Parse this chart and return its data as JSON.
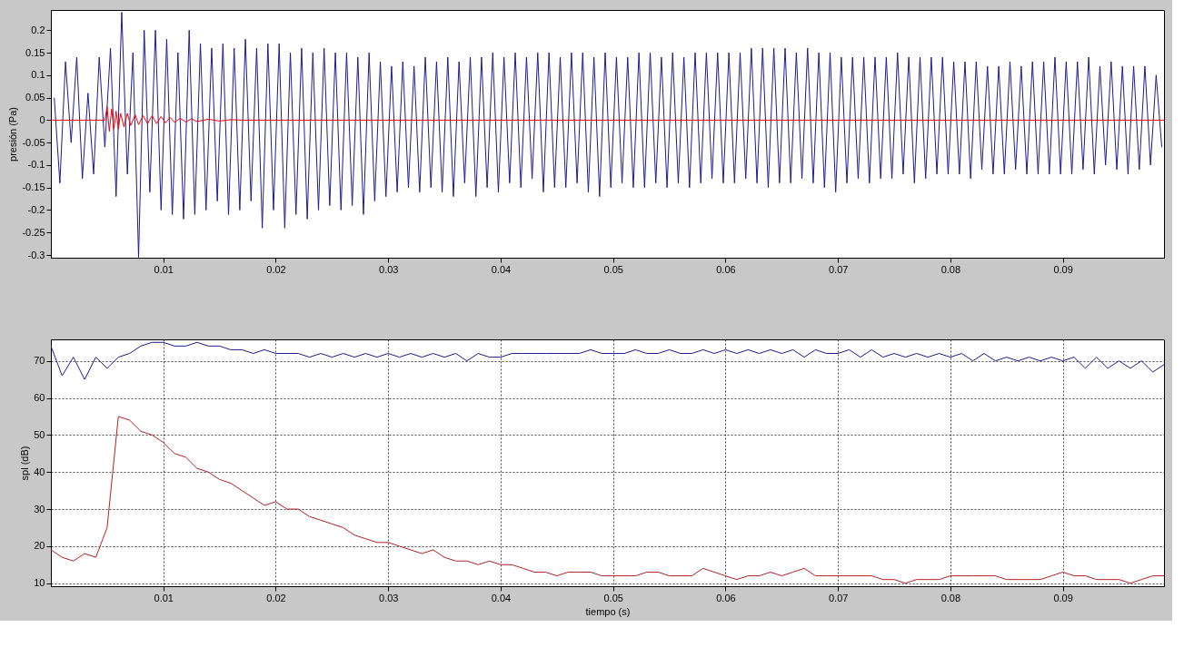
{
  "chart_data": [
    {
      "type": "line",
      "ylabel": "presión (Pa)",
      "xlim": [
        0,
        0.099
      ],
      "ylim": [
        -0.306,
        0.245
      ],
      "xticks": [
        0.01,
        0.02,
        0.03,
        0.04,
        0.05,
        0.06,
        0.07,
        0.08,
        0.09
      ],
      "yticks": [
        -0.3,
        -0.25,
        -0.2,
        -0.15,
        -0.1,
        -0.05,
        0,
        0.05,
        0.1,
        0.15,
        0.2
      ],
      "grid": false,
      "series": [
        {
          "color": "#1c1c8f",
          "x": [
            0.0003,
            0.0008,
            0.0013,
            0.0018,
            0.0023,
            0.0028,
            0.0033,
            0.0038,
            0.0043,
            0.0048,
            0.0053,
            0.0058,
            0.0063,
            0.0068,
            0.0073,
            0.0078,
            0.0083,
            0.0088,
            0.0093,
            0.0098,
            0.0103,
            0.0108,
            0.0113,
            0.0118,
            0.0123,
            0.0128,
            0.0133,
            0.0138,
            0.0143,
            0.0148,
            0.0153,
            0.0158,
            0.0163,
            0.0168,
            0.0173,
            0.0178,
            0.0183,
            0.0188,
            0.0193,
            0.0198,
            0.0203,
            0.0208,
            0.0213,
            0.0218,
            0.0223,
            0.0228,
            0.0233,
            0.0238,
            0.0243,
            0.0248,
            0.0253,
            0.0258,
            0.0263,
            0.0268,
            0.0273,
            0.0278,
            0.0283,
            0.0288,
            0.0293,
            0.0298,
            0.0303,
            0.0308,
            0.0313,
            0.0318,
            0.0323,
            0.0328,
            0.0333,
            0.0338,
            0.0343,
            0.0348,
            0.0353,
            0.0358,
            0.0363,
            0.0368,
            0.0373,
            0.0378,
            0.0383,
            0.0388,
            0.0393,
            0.0398,
            0.0403,
            0.0408,
            0.0413,
            0.0418,
            0.0423,
            0.0428,
            0.0433,
            0.0438,
            0.0443,
            0.0448,
            0.0453,
            0.0458,
            0.0463,
            0.0468,
            0.0473,
            0.0478,
            0.0483,
            0.0488,
            0.0493,
            0.0498,
            0.0503,
            0.0508,
            0.0513,
            0.0518,
            0.0523,
            0.0528,
            0.0533,
            0.0538,
            0.0543,
            0.0548,
            0.0553,
            0.0558,
            0.0563,
            0.0568,
            0.0573,
            0.0578,
            0.0583,
            0.0588,
            0.0593,
            0.0598,
            0.0603,
            0.0608,
            0.0613,
            0.0618,
            0.0623,
            0.0628,
            0.0633,
            0.0638,
            0.0643,
            0.0648,
            0.0653,
            0.0658,
            0.0663,
            0.0668,
            0.0673,
            0.0678,
            0.0683,
            0.0688,
            0.0693,
            0.0698,
            0.0703,
            0.0708,
            0.0713,
            0.0718,
            0.0723,
            0.0728,
            0.0733,
            0.0738,
            0.0743,
            0.0748,
            0.0753,
            0.0758,
            0.0763,
            0.0768,
            0.0773,
            0.0778,
            0.0783,
            0.0788,
            0.0793,
            0.0798,
            0.0803,
            0.0808,
            0.0813,
            0.0818,
            0.0823,
            0.0828,
            0.0833,
            0.0838,
            0.0843,
            0.0848,
            0.0853,
            0.0858,
            0.0863,
            0.0868,
            0.0873,
            0.0878,
            0.0883,
            0.0888,
            0.0893,
            0.0898,
            0.0903,
            0.0908,
            0.0913,
            0.0918,
            0.0923,
            0.0928,
            0.0933,
            0.0938,
            0.0943,
            0.0948,
            0.0953,
            0.0958,
            0.0963,
            0.0968,
            0.0973,
            0.0978,
            0.0983,
            0.0988
          ],
          "values": [
            0.05,
            -0.14,
            0.13,
            -0.05,
            0.14,
            -0.13,
            0.06,
            -0.12,
            0.14,
            -0.06,
            0.16,
            -0.17,
            0.24,
            -0.12,
            0.15,
            -0.305,
            0.2,
            -0.16,
            0.2,
            -0.2,
            0.18,
            -0.21,
            0.15,
            -0.22,
            0.2,
            -0.21,
            0.17,
            -0.2,
            0.16,
            -0.18,
            0.17,
            -0.21,
            0.16,
            -0.2,
            0.18,
            -0.18,
            0.16,
            -0.24,
            0.17,
            -0.2,
            0.17,
            -0.24,
            0.15,
            -0.21,
            0.16,
            -0.22,
            0.15,
            -0.2,
            0.16,
            -0.19,
            0.15,
            -0.2,
            0.15,
            -0.19,
            0.14,
            -0.21,
            0.15,
            -0.18,
            0.13,
            -0.17,
            0.12,
            -0.16,
            0.13,
            -0.15,
            0.12,
            -0.16,
            0.14,
            -0.15,
            0.13,
            -0.16,
            0.14,
            -0.17,
            0.13,
            -0.14,
            0.14,
            -0.17,
            0.14,
            -0.15,
            0.15,
            -0.16,
            0.14,
            -0.14,
            0.15,
            -0.15,
            0.14,
            -0.13,
            0.15,
            -0.16,
            0.15,
            -0.15,
            0.14,
            -0.15,
            0.15,
            -0.14,
            0.15,
            -0.16,
            0.14,
            -0.17,
            0.15,
            -0.15,
            0.14,
            -0.14,
            0.14,
            -0.15,
            0.15,
            -0.15,
            0.15,
            -0.14,
            0.14,
            -0.15,
            0.15,
            -0.14,
            0.14,
            -0.15,
            0.15,
            -0.14,
            0.15,
            -0.13,
            0.15,
            -0.14,
            0.15,
            -0.14,
            0.15,
            -0.13,
            0.16,
            -0.14,
            0.16,
            -0.15,
            0.16,
            -0.14,
            0.16,
            -0.14,
            0.15,
            -0.13,
            0.16,
            -0.14,
            0.15,
            -0.15,
            0.15,
            -0.16,
            0.14,
            -0.14,
            0.14,
            -0.13,
            0.14,
            -0.14,
            0.14,
            -0.13,
            0.14,
            -0.13,
            0.15,
            -0.12,
            0.14,
            -0.14,
            0.14,
            -0.13,
            0.14,
            -0.12,
            0.14,
            -0.12,
            0.13,
            -0.12,
            0.13,
            -0.13,
            0.13,
            -0.11,
            0.12,
            -0.12,
            0.12,
            -0.12,
            0.13,
            -0.11,
            0.12,
            -0.12,
            0.13,
            -0.12,
            0.13,
            -0.12,
            0.14,
            -0.12,
            0.13,
            -0.12,
            0.13,
            -0.11,
            0.14,
            -0.12,
            0.12,
            -0.1,
            0.13,
            -0.11,
            0.12,
            -0.12,
            0.12,
            -0.11,
            0.12,
            -0.1,
            0.1,
            -0.06
          ]
        },
        {
          "color": "#ff0000",
          "x": [
            0,
            0.0048,
            0.005,
            0.0052,
            0.0054,
            0.0056,
            0.0058,
            0.006,
            0.0062,
            0.0065,
            0.0068,
            0.0071,
            0.0075,
            0.0078,
            0.0082,
            0.0086,
            0.009,
            0.0094,
            0.0098,
            0.0102,
            0.0106,
            0.011,
            0.0115,
            0.012,
            0.0125,
            0.013,
            0.014,
            0.015,
            0.016,
            0.017,
            0.02,
            0.099
          ],
          "values": [
            0,
            0,
            0.03,
            -0.025,
            0.025,
            -0.02,
            0.02,
            -0.02,
            0.015,
            -0.015,
            0.015,
            -0.012,
            0.012,
            -0.01,
            0.01,
            -0.008,
            0.01,
            -0.008,
            0.008,
            -0.006,
            0.006,
            -0.005,
            0.004,
            -0.004,
            0.003,
            -0.003,
            0.002,
            -0.002,
            0.001,
            0,
            0,
            0
          ]
        }
      ]
    },
    {
      "type": "line",
      "xlabel": "tiempo (s)",
      "ylabel": "spl (dB)",
      "xlim": [
        0,
        0.099
      ],
      "ylim": [
        9.2,
        75.8
      ],
      "xticks": [
        0.01,
        0.02,
        0.03,
        0.04,
        0.05,
        0.06,
        0.07,
        0.08,
        0.09
      ],
      "yticks": [
        10,
        20,
        30,
        40,
        50,
        60,
        70
      ],
      "grid": true,
      "x": [
        0,
        0.001,
        0.002,
        0.003,
        0.004,
        0.005,
        0.006,
        0.007,
        0.008,
        0.009,
        0.01,
        0.011,
        0.012,
        0.013,
        0.014,
        0.015,
        0.016,
        0.017,
        0.018,
        0.019,
        0.02,
        0.021,
        0.022,
        0.023,
        0.024,
        0.025,
        0.026,
        0.027,
        0.028,
        0.029,
        0.03,
        0.031,
        0.032,
        0.033,
        0.034,
        0.035,
        0.036,
        0.037,
        0.038,
        0.039,
        0.04,
        0.041,
        0.042,
        0.043,
        0.044,
        0.045,
        0.046,
        0.047,
        0.048,
        0.049,
        0.05,
        0.051,
        0.052,
        0.053,
        0.054,
        0.055,
        0.056,
        0.057,
        0.058,
        0.059,
        0.06,
        0.061,
        0.062,
        0.063,
        0.064,
        0.065,
        0.066,
        0.067,
        0.068,
        0.069,
        0.07,
        0.071,
        0.072,
        0.073,
        0.074,
        0.075,
        0.076,
        0.077,
        0.078,
        0.079,
        0.08,
        0.081,
        0.082,
        0.083,
        0.084,
        0.085,
        0.086,
        0.087,
        0.088,
        0.089,
        0.09,
        0.091,
        0.092,
        0.093,
        0.094,
        0.095,
        0.096,
        0.097,
        0.098,
        0.099
      ],
      "series": [
        {
          "color": "#1c1c8f",
          "values": [
            74,
            66,
            71,
            65,
            71,
            68,
            71,
            72,
            74,
            75,
            75,
            74,
            74,
            75,
            74,
            74,
            73,
            73,
            72,
            73,
            72,
            72,
            72,
            71,
            72,
            71,
            72,
            71,
            72,
            71,
            72,
            71,
            72,
            71,
            72,
            71,
            72,
            70,
            72,
            71,
            71,
            72,
            72,
            72,
            72,
            72,
            72,
            72,
            73,
            72,
            72,
            72,
            73,
            72,
            72,
            73,
            72,
            72,
            73,
            72,
            73,
            72,
            73,
            72,
            73,
            72,
            73,
            71,
            73,
            72,
            72,
            73,
            71,
            73,
            71,
            72,
            71,
            72,
            71,
            72,
            71,
            72,
            70,
            72,
            70,
            71,
            70,
            71,
            70,
            71,
            70,
            71,
            68,
            71,
            68,
            70,
            68,
            70,
            67,
            69
          ]
        },
        {
          "color": "#b22222",
          "values": [
            19,
            17,
            16,
            18,
            17,
            25,
            55,
            54,
            51,
            50,
            48,
            45,
            44,
            41,
            40,
            38,
            37,
            35,
            33,
            31,
            32,
            30,
            30,
            28,
            27,
            26,
            25,
            23,
            22,
            21,
            21,
            20,
            19,
            18,
            19,
            17,
            16,
            16,
            15,
            16,
            15,
            15,
            14,
            13,
            13,
            12,
            13,
            13,
            13,
            12,
            12,
            12,
            12,
            13,
            13,
            12,
            12,
            12,
            14,
            13,
            12,
            11,
            12,
            12,
            13,
            12,
            13,
            14,
            12,
            12,
            12,
            12,
            12,
            12,
            11,
            11,
            10,
            11,
            11,
            11,
            12,
            12,
            12,
            12,
            12,
            11,
            11,
            11,
            11,
            12,
            13,
            12,
            12,
            11,
            11,
            11,
            10,
            11,
            12,
            12
          ]
        }
      ]
    }
  ]
}
